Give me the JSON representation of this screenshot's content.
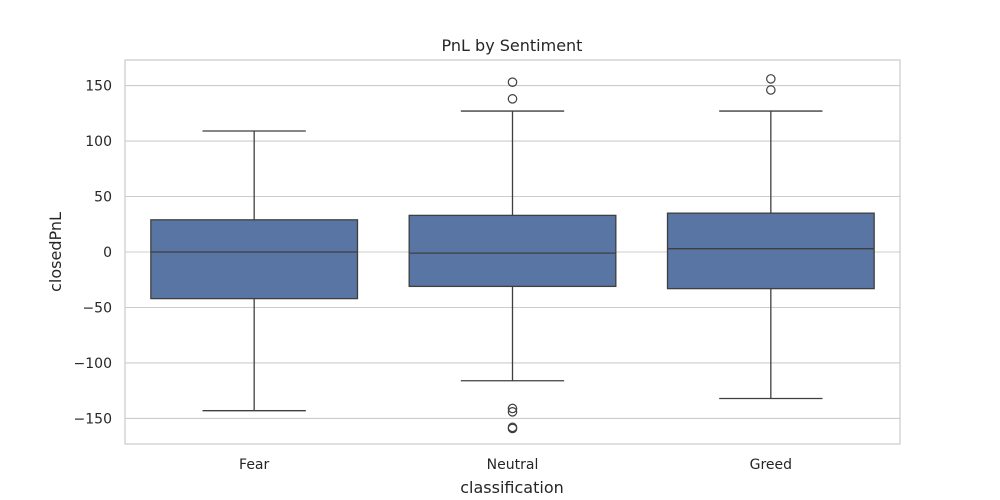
{
  "chart_data": {
    "type": "box",
    "title": "PnL by Sentiment",
    "xlabel": "classification",
    "ylabel": "closedPnL",
    "categories": [
      "Fear",
      "Neutral",
      "Greed"
    ],
    "ylim": [
      -173,
      173
    ],
    "yticks": [
      150,
      100,
      50,
      0,
      -50,
      -100,
      -150
    ],
    "ytick_labels": [
      "150",
      "100",
      "50",
      "0",
      "−50",
      "−100",
      "−150"
    ],
    "grid": true,
    "box_color": "#5875a4",
    "line_color": "#3f3f3f",
    "boxes": [
      {
        "category": "Fear",
        "whisker_low": -143,
        "q1": -42,
        "median": 0,
        "q3": 29,
        "whisker_high": 109,
        "outliers": []
      },
      {
        "category": "Neutral",
        "whisker_low": -116,
        "q1": -31,
        "median": -1,
        "q3": 33,
        "whisker_high": 127,
        "outliers": [
          153,
          138,
          -141,
          -144,
          -158,
          -159
        ]
      },
      {
        "category": "Greed",
        "whisker_low": -132,
        "q1": -33,
        "median": 3,
        "q3": 35,
        "whisker_high": 127,
        "outliers": [
          156,
          146
        ]
      }
    ]
  }
}
